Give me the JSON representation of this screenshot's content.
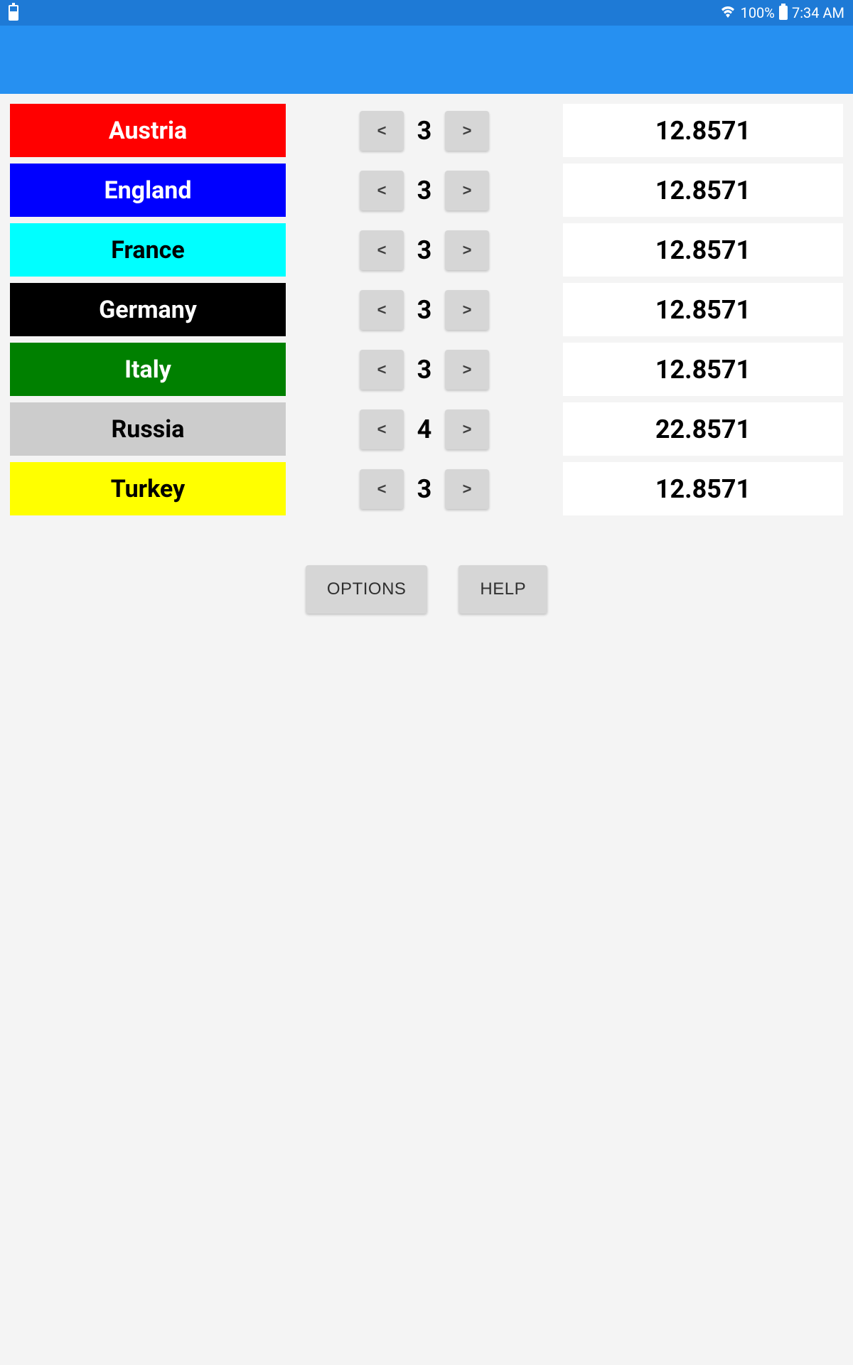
{
  "status_bar": {
    "battery_percent": "100%",
    "time": "7:34 AM"
  },
  "countries": [
    {
      "name": "Austria",
      "bg_color": "#ff0000",
      "text_color": "#ffffff",
      "value": "3",
      "score": "12.8571"
    },
    {
      "name": "England",
      "bg_color": "#0000ff",
      "text_color": "#ffffff",
      "value": "3",
      "score": "12.8571"
    },
    {
      "name": "France",
      "bg_color": "#00ffff",
      "text_color": "#000000",
      "value": "3",
      "score": "12.8571"
    },
    {
      "name": "Germany",
      "bg_color": "#000000",
      "text_color": "#ffffff",
      "value": "3",
      "score": "12.8571"
    },
    {
      "name": "Italy",
      "bg_color": "#008000",
      "text_color": "#ffffff",
      "value": "3",
      "score": "12.8571"
    },
    {
      "name": "Russia",
      "bg_color": "#cccccc",
      "text_color": "#000000",
      "value": "4",
      "score": "22.8571"
    },
    {
      "name": "Turkey",
      "bg_color": "#ffff00",
      "text_color": "#000000",
      "value": "3",
      "score": "12.8571"
    }
  ],
  "stepper": {
    "decrement": "<",
    "increment": ">"
  },
  "buttons": {
    "options": "OPTIONS",
    "help": "HELP"
  }
}
